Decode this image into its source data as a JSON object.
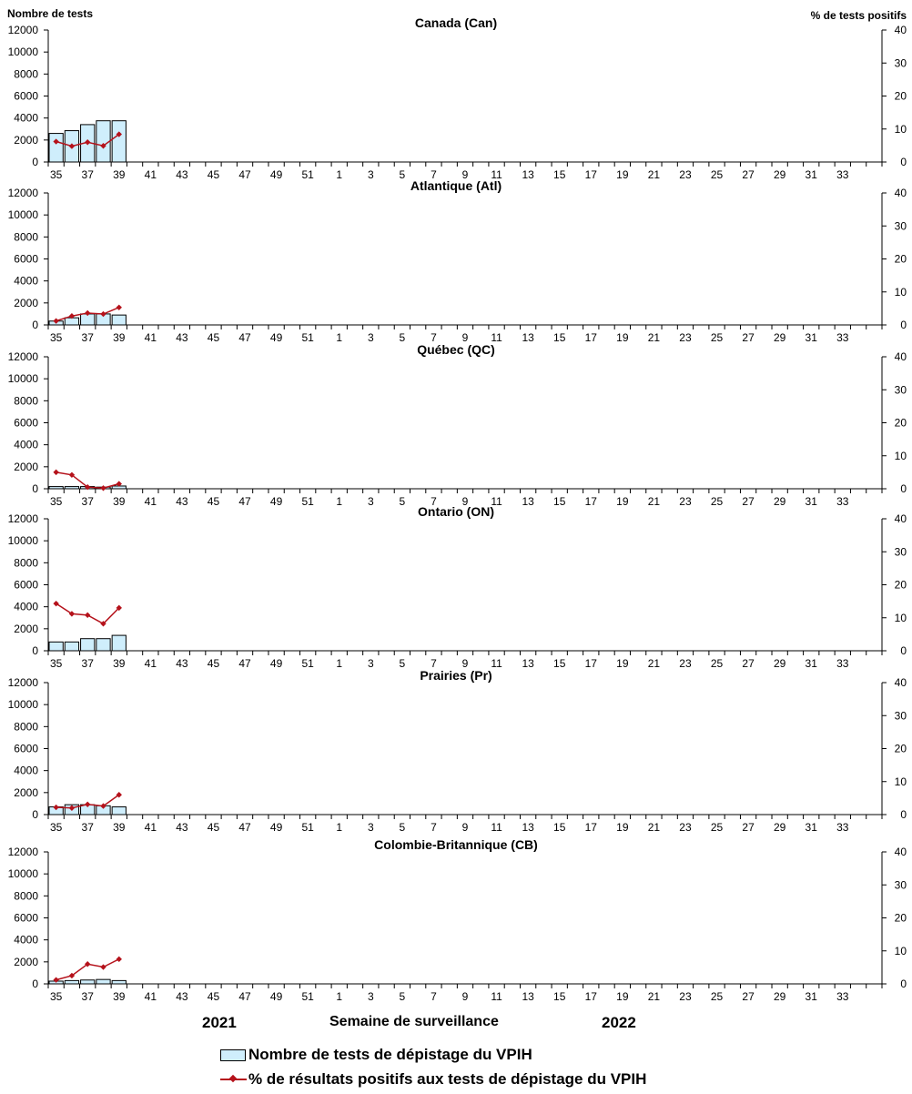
{
  "axis_titles": {
    "y_left": "Nombre de tests",
    "y_right": "% de tests positifs",
    "x": "Semaine de surveillance"
  },
  "year_labels": [
    "2021",
    "2022"
  ],
  "legend": {
    "bar": "Nombre de tests de dépistage du VPIH",
    "line": "% de résultats positifs aux tests de dépistage du VPIH"
  },
  "colors": {
    "bar_fill": "#cfeefc",
    "bar_stroke": "#000000",
    "line": "#b5121b"
  },
  "chart_data": [
    {
      "type": "bar",
      "title": "Canada (Can)",
      "x_ticks": [
        "35",
        "37",
        "39",
        "41",
        "43",
        "45",
        "47",
        "49",
        "51",
        "1",
        "3",
        "5",
        "7",
        "9",
        "11",
        "13",
        "15",
        "17",
        "19",
        "21",
        "23",
        "25",
        "27",
        "29",
        "31",
        "33"
      ],
      "categories": [
        "35",
        "36",
        "37",
        "38",
        "39"
      ],
      "ylim": [
        0,
        12000
      ],
      "y_ticks": [
        0,
        2000,
        4000,
        6000,
        8000,
        10000,
        12000
      ],
      "y2lim": [
        0,
        40
      ],
      "y2_ticks": [
        0,
        10,
        20,
        30,
        40
      ],
      "series": [
        {
          "name": "Nombre de tests de dépistage du VPIH",
          "type": "bar",
          "values": [
            2600,
            2850,
            3400,
            3750,
            3750
          ]
        },
        {
          "name": "% de résultats positifs aux tests de dépistage du VPIH",
          "type": "line",
          "axis": "right",
          "values": [
            6.2,
            4.8,
            6.0,
            4.9,
            8.4
          ]
        }
      ]
    },
    {
      "type": "bar",
      "title": "Atlantique (Atl)",
      "x_ticks": [
        "35",
        "37",
        "39",
        "41",
        "43",
        "45",
        "47",
        "49",
        "51",
        "1",
        "3",
        "5",
        "7",
        "9",
        "11",
        "13",
        "15",
        "17",
        "19",
        "21",
        "23",
        "25",
        "27",
        "29",
        "31",
        "33"
      ],
      "categories": [
        "35",
        "36",
        "37",
        "38",
        "39"
      ],
      "ylim": [
        0,
        12000
      ],
      "y_ticks": [
        0,
        2000,
        4000,
        6000,
        8000,
        10000,
        12000
      ],
      "y2lim": [
        0,
        40
      ],
      "y2_ticks": [
        0,
        10,
        20,
        30,
        40
      ],
      "series": [
        {
          "name": "Nombre de tests de dépistage du VPIH",
          "type": "bar",
          "values": [
            350,
            650,
            1000,
            1000,
            900
          ]
        },
        {
          "name": "% de résultats positifs aux tests de dépistage du VPIH",
          "type": "line",
          "axis": "right",
          "values": [
            1.2,
            2.7,
            3.6,
            3.3,
            5.3
          ]
        }
      ]
    },
    {
      "type": "bar",
      "title": "Québec (QC)",
      "x_ticks": [
        "35",
        "37",
        "39",
        "41",
        "43",
        "45",
        "47",
        "49",
        "51",
        "1",
        "3",
        "5",
        "7",
        "9",
        "11",
        "13",
        "15",
        "17",
        "19",
        "21",
        "23",
        "25",
        "27",
        "29",
        "31",
        "33"
      ],
      "categories": [
        "35",
        "36",
        "37",
        "38",
        "39"
      ],
      "ylim": [
        0,
        12000
      ],
      "y_ticks": [
        0,
        2000,
        4000,
        6000,
        8000,
        10000,
        12000
      ],
      "y2lim": [
        0,
        40
      ],
      "y2_ticks": [
        0,
        10,
        20,
        30,
        40
      ],
      "series": [
        {
          "name": "Nombre de tests de dépistage du VPIH",
          "type": "bar",
          "values": [
            200,
            200,
            200,
            150,
            250
          ]
        },
        {
          "name": "% de résultats positifs aux tests de dépistage du VPIH",
          "type": "line",
          "axis": "right",
          "values": [
            5.0,
            4.2,
            0.5,
            0.2,
            1.5
          ]
        }
      ]
    },
    {
      "type": "bar",
      "title": "Ontario (ON)",
      "x_ticks": [
        "35",
        "37",
        "39",
        "41",
        "43",
        "45",
        "47",
        "49",
        "51",
        "1",
        "3",
        "5",
        "7",
        "9",
        "11",
        "13",
        "15",
        "17",
        "19",
        "21",
        "23",
        "25",
        "27",
        "29",
        "31",
        "33"
      ],
      "categories": [
        "35",
        "36",
        "37",
        "38",
        "39"
      ],
      "ylim": [
        0,
        12000
      ],
      "y_ticks": [
        0,
        2000,
        4000,
        6000,
        8000,
        10000,
        12000
      ],
      "y2lim": [
        0,
        40
      ],
      "y2_ticks": [
        0,
        10,
        20,
        30,
        40
      ],
      "series": [
        {
          "name": "Nombre de tests de dépistage du VPIH",
          "type": "bar",
          "values": [
            800,
            800,
            1100,
            1100,
            1400
          ]
        },
        {
          "name": "% de résultats positifs aux tests de dépistage du VPIH",
          "type": "line",
          "axis": "right",
          "values": [
            14.3,
            11.2,
            10.8,
            8.2,
            13.0
          ]
        }
      ]
    },
    {
      "type": "bar",
      "title": "Prairies (Pr)",
      "x_ticks": [
        "35",
        "37",
        "39",
        "41",
        "43",
        "45",
        "47",
        "49",
        "51",
        "1",
        "3",
        "5",
        "7",
        "9",
        "11",
        "13",
        "15",
        "17",
        "19",
        "21",
        "23",
        "25",
        "27",
        "29",
        "31",
        "33"
      ],
      "categories": [
        "35",
        "36",
        "37",
        "38",
        "39"
      ],
      "ylim": [
        0,
        12000
      ],
      "y_ticks": [
        0,
        2000,
        4000,
        6000,
        8000,
        10000,
        12000
      ],
      "y2lim": [
        0,
        40
      ],
      "y2_ticks": [
        0,
        10,
        20,
        30,
        40
      ],
      "series": [
        {
          "name": "Nombre de tests de dépistage du VPIH",
          "type": "bar",
          "values": [
            700,
            900,
            900,
            800,
            700
          ]
        },
        {
          "name": "% de résultats positifs aux tests de dépistage du VPIH",
          "type": "line",
          "axis": "right",
          "values": [
            2.2,
            2.0,
            3.1,
            2.6,
            6.0
          ]
        }
      ]
    },
    {
      "type": "bar",
      "title": "Colombie-Britannique (CB)",
      "x_ticks": [
        "35",
        "37",
        "39",
        "41",
        "43",
        "45",
        "47",
        "49",
        "51",
        "1",
        "3",
        "5",
        "7",
        "9",
        "11",
        "13",
        "15",
        "17",
        "19",
        "21",
        "23",
        "25",
        "27",
        "29",
        "31",
        "33"
      ],
      "categories": [
        "35",
        "36",
        "37",
        "38",
        "39"
      ],
      "ylim": [
        0,
        12000
      ],
      "y_ticks": [
        0,
        2000,
        4000,
        6000,
        8000,
        10000,
        12000
      ],
      "y2lim": [
        0,
        40
      ],
      "y2_ticks": [
        0,
        10,
        20,
        30,
        40
      ],
      "series": [
        {
          "name": "Nombre de tests de dépistage du VPIH",
          "type": "bar",
          "values": [
            250,
            300,
            350,
            400,
            300
          ]
        },
        {
          "name": "% de résultats positifs aux tests de dépistage du VPIH",
          "type": "line",
          "axis": "right",
          "values": [
            1.2,
            2.5,
            6.0,
            5.1,
            7.5
          ]
        }
      ]
    }
  ]
}
